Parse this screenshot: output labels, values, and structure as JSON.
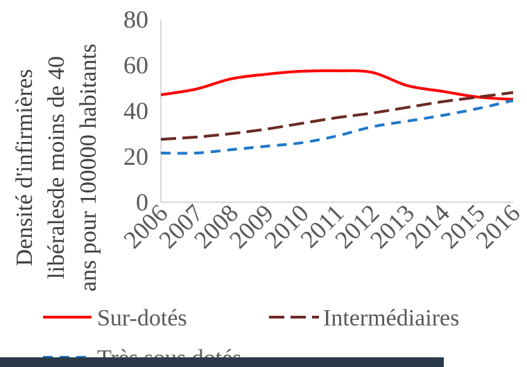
{
  "chart_data": {
    "type": "line",
    "x": [
      "2006",
      "2007",
      "2008",
      "2009",
      "2010",
      "2011",
      "2012",
      "2013",
      "2014",
      "2015",
      "2016"
    ],
    "ylabel_lines": [
      "Densité d'infirmières",
      "libéralesde moins de 40",
      "ans  pour 100000 habitants"
    ],
    "ylim": [
      0,
      80
    ],
    "yticks": [
      "0",
      "20",
      "40",
      "60",
      "80"
    ],
    "grid": false,
    "legend_position": "bottom",
    "series": [
      {
        "name": "Sur-dotés",
        "color": "#ff0000",
        "dash": "solid",
        "values": [
          47,
          49.5,
          54,
          56,
          57.3,
          57.5,
          56.8,
          51,
          48.5,
          46,
          45
        ]
      },
      {
        "name": "Intermédiaires",
        "color": "#6b2a24",
        "dash": "long-dash",
        "values": [
          27.5,
          28.5,
          30,
          32,
          34.5,
          37,
          39,
          41.5,
          44,
          46,
          48
        ]
      },
      {
        "name": "Très sous dotés",
        "color": "#1f78c8",
        "dash": "dash",
        "values": [
          21.5,
          21.5,
          23,
          24.5,
          26,
          29,
          33,
          35.5,
          38,
          41,
          44.5
        ]
      }
    ]
  }
}
